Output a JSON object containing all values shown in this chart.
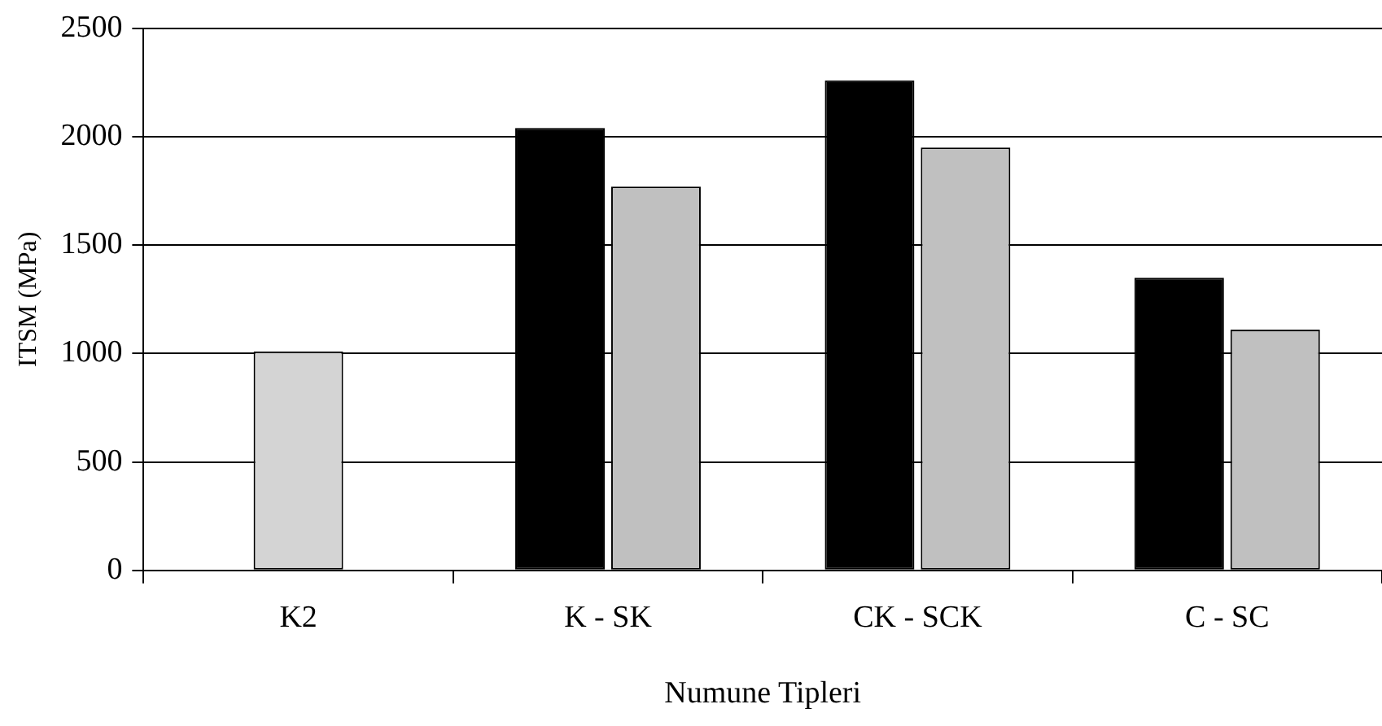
{
  "chart_data": {
    "type": "bar",
    "xlabel": "Numune Tipleri",
    "ylabel": "ITSM (MPa)",
    "categories": [
      "K2",
      "K - SK",
      "CK - SCK",
      "C - SC"
    ],
    "series": [
      {
        "color": "#d4d4d4",
        "values": [
          1010,
          null,
          null,
          null
        ]
      },
      {
        "color": "#000000",
        "values": [
          null,
          2040,
          2260,
          1350
        ]
      },
      {
        "color": "#c0c0c0",
        "values": [
          null,
          1770,
          1950,
          1110
        ]
      }
    ],
    "ylim": [
      0,
      2500
    ],
    "yticks": [
      0,
      500,
      1000,
      1500,
      2000,
      2500
    ],
    "grid": "y",
    "legend": false
  }
}
